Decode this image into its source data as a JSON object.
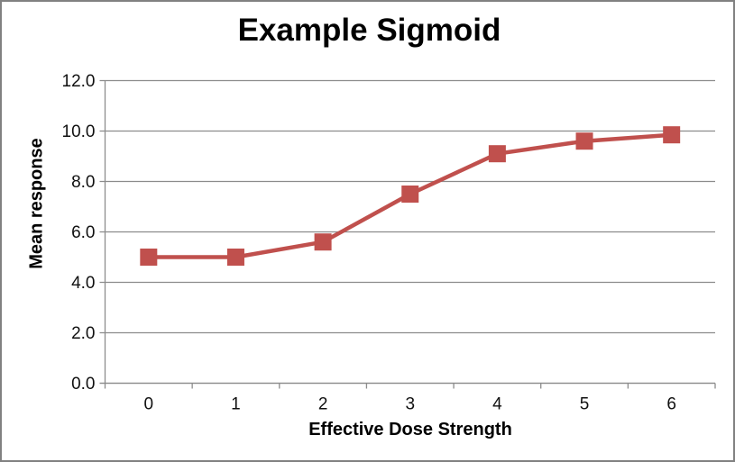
{
  "chart": {
    "title": "Example Sigmoid",
    "x_axis_title": "Effective Dose Strength",
    "y_axis_title": "Mean response"
  },
  "chart_data": {
    "type": "line",
    "title": "Example Sigmoid",
    "xlabel": "Effective Dose Strength",
    "ylabel": "Mean response",
    "categories": [
      "0",
      "1",
      "2",
      "3",
      "4",
      "5",
      "6"
    ],
    "series": [
      {
        "name": "Mean response",
        "values": [
          5.0,
          5.0,
          5.6,
          7.5,
          9.1,
          9.6,
          9.85
        ],
        "color": "#C0504D",
        "marker": "square"
      }
    ],
    "ylim": [
      0,
      12
    ],
    "ytick_step": 2,
    "ytick_labels": [
      "0.0",
      "2.0",
      "4.0",
      "6.0",
      "8.0",
      "10.0",
      "12.0"
    ],
    "grid": "horizontal",
    "legend": "none",
    "colors": {
      "series": "#C0504D",
      "gridline": "#8C8C8C",
      "axis": "#8C8C8C",
      "text": "#111111",
      "frame_border": "#818181",
      "background": "#FFFFFF"
    }
  }
}
